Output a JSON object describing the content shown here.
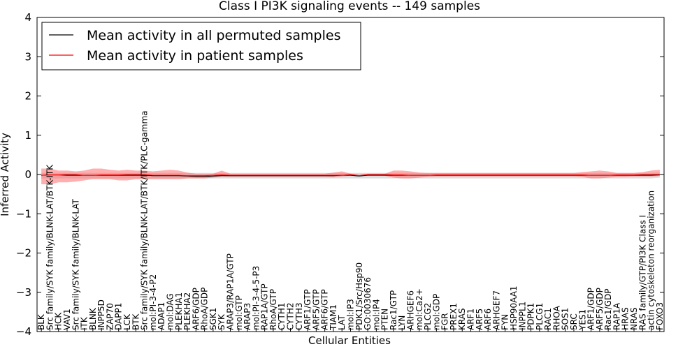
{
  "chart_data": {
    "type": "line",
    "title": "Class I PI3K signaling events -- 149 samples",
    "xlabel": "Cellular Entities",
    "ylabel": "Inferred Activity",
    "ylim": [
      -4,
      4
    ],
    "yticks": [
      -4,
      -3,
      -2,
      -1,
      0,
      1,
      2,
      3,
      4
    ],
    "ytick_labels": [
      "−4",
      "−3",
      "−2",
      "−1",
      "0",
      "1",
      "2",
      "3",
      "4"
    ],
    "grid": false,
    "legend_position": "top-left",
    "categories": [
      "BLK",
      "Src family/SYK family/BLNK-LAT/BTK-ITK",
      "HCK",
      "VAV1",
      "Src family/SYK family/BLNK-LAT",
      "ITK",
      "BLNK",
      "INPP5D",
      "ZAP70",
      "DAPP1",
      "LCK",
      "BTK",
      "Src family/SYK family/BLNK-LAT/BTK/ITK/PLC-gamma",
      "mol:PI-3-4-P2",
      "ADAP1",
      "mol:DAG",
      "PLEKHA1",
      "PLEKHA2",
      "ARF6/GDP",
      "RhoA/GDP",
      "SGK1",
      "SYK",
      "ARAP3/RAP1A/GTP",
      "mol:GTP",
      "ARAP3",
      "mol:PI-3-4-5-P3",
      "RAP1A/GTP",
      "RhoA/GTP",
      "CYTH1",
      "CYTH2",
      "CYTH3",
      "ARF1/GTP",
      "ARF5/GTP",
      "ARF6/GTP",
      "TIAM1",
      "LAT",
      "mol:IP3",
      "PDK1/Src/Hsp90",
      "GO:0030676",
      "mol:IP4",
      "PTEN",
      "Rac1/GTP",
      "LYN",
      "ARHGEF6",
      "mol:Ca2+",
      "PLCG2",
      "mol:GDP",
      "FGR",
      "PREX1",
      "KRAS",
      "ARF1",
      "ARF5",
      "ARF6",
      "ARHGEF7",
      "FYN",
      "HSP90AA1",
      "INPPL1",
      "PDPK1",
      "PLCG1",
      "RAC1",
      "RHOA",
      "SOS1",
      "SRC",
      "YES1",
      "ARF1/GDP",
      "ARF5/GDP",
      "Rac1/GDP",
      "RAP1A",
      "HRAS",
      "NRAS",
      "RAS family/GTP/PI3K Class I",
      "actin cytoskeleton reorganization",
      "FOXO3"
    ],
    "series": [
      {
        "name": "Mean activity in all permuted samples",
        "color": "#000000",
        "values": [
          -0.02,
          -0.01,
          -0.01,
          -0.02,
          -0.02,
          -0.02,
          -0.02,
          -0.02,
          -0.02,
          -0.02,
          -0.02,
          -0.02,
          -0.02,
          -0.03,
          -0.03,
          -0.03,
          -0.03,
          -0.04,
          -0.05,
          -0.05,
          -0.04,
          -0.03,
          -0.03,
          -0.03,
          -0.03,
          -0.03,
          -0.03,
          -0.03,
          -0.03,
          -0.03,
          -0.03,
          -0.03,
          -0.03,
          -0.03,
          -0.03,
          -0.02,
          -0.02,
          -0.04,
          -0.02,
          -0.02,
          -0.02,
          -0.02,
          -0.02,
          -0.02,
          -0.02,
          -0.02,
          -0.02,
          -0.02,
          -0.02,
          -0.02,
          -0.02,
          -0.02,
          -0.02,
          -0.02,
          -0.02,
          -0.02,
          -0.02,
          -0.02,
          -0.02,
          -0.02,
          -0.02,
          -0.02,
          -0.02,
          -0.02,
          -0.02,
          -0.02,
          -0.02,
          -0.02,
          -0.02,
          -0.02,
          -0.02,
          -0.02,
          -0.01
        ],
        "band_low": [
          -0.1,
          -0.1,
          -0.1,
          -0.1,
          -0.1,
          -0.1,
          -0.1,
          -0.1,
          -0.1,
          -0.1,
          -0.1,
          -0.1,
          -0.1,
          -0.1,
          -0.1,
          -0.1,
          -0.1,
          -0.1,
          -0.1,
          -0.1,
          -0.1,
          -0.1,
          -0.1,
          -0.1,
          -0.1,
          -0.1,
          -0.1,
          -0.1,
          -0.1,
          -0.1,
          -0.1,
          -0.1,
          -0.1,
          -0.1,
          -0.1,
          -0.1,
          -0.1,
          -0.1,
          -0.1,
          -0.1,
          -0.1,
          -0.1,
          -0.1,
          -0.1,
          -0.1,
          -0.1,
          -0.1,
          -0.1,
          -0.1,
          -0.1,
          -0.1,
          -0.1,
          -0.1,
          -0.1,
          -0.1,
          -0.1,
          -0.1,
          -0.1,
          -0.1,
          -0.1,
          -0.1,
          -0.1,
          -0.1,
          -0.1,
          -0.1,
          -0.1,
          -0.1,
          -0.1,
          -0.1,
          -0.1,
          -0.1,
          -0.1,
          -0.08
        ],
        "band_high": [
          0.04,
          0.04,
          0.04,
          0.04,
          0.04,
          0.04,
          0.04,
          0.04,
          0.04,
          0.04,
          0.04,
          0.04,
          0.04,
          0.04,
          0.04,
          0.04,
          0.04,
          0.04,
          0.04,
          0.04,
          0.04,
          0.04,
          0.04,
          0.04,
          0.04,
          0.04,
          0.04,
          0.04,
          0.04,
          0.04,
          0.04,
          0.04,
          0.04,
          0.04,
          0.04,
          0.04,
          0.04,
          0.04,
          0.04,
          0.04,
          0.04,
          0.04,
          0.04,
          0.04,
          0.04,
          0.04,
          0.04,
          0.04,
          0.04,
          0.04,
          0.04,
          0.04,
          0.04,
          0.04,
          0.04,
          0.04,
          0.04,
          0.04,
          0.04,
          0.04,
          0.04,
          0.04,
          0.04,
          0.04,
          0.04,
          0.04,
          0.04,
          0.04,
          0.04,
          0.04,
          0.04,
          0.04,
          0.05
        ]
      },
      {
        "name": "Mean activity in patient samples",
        "color": "#ff0000",
        "values": [
          -0.02,
          -0.01,
          -0.01,
          0.0,
          0.0,
          -0.02,
          -0.02,
          -0.01,
          -0.01,
          -0.01,
          0.0,
          0.0,
          0.0,
          -0.02,
          -0.02,
          -0.02,
          -0.02,
          -0.03,
          -0.03,
          -0.03,
          -0.02,
          -0.01,
          -0.02,
          -0.02,
          -0.02,
          -0.02,
          -0.02,
          -0.02,
          -0.02,
          -0.02,
          -0.02,
          -0.02,
          -0.02,
          -0.02,
          -0.02,
          -0.02,
          0.0,
          -0.03,
          0.0,
          0.0,
          0.0,
          -0.01,
          -0.01,
          -0.02,
          -0.02,
          -0.02,
          -0.01,
          -0.01,
          -0.01,
          -0.01,
          -0.01,
          -0.01,
          -0.01,
          -0.01,
          -0.01,
          -0.01,
          -0.01,
          -0.01,
          -0.01,
          -0.01,
          -0.01,
          -0.01,
          -0.01,
          -0.01,
          -0.02,
          -0.02,
          -0.02,
          -0.01,
          -0.01,
          -0.01,
          0.0,
          0.0,
          0.0
        ],
        "band_low": [
          -0.25,
          -0.25,
          -0.2,
          -0.2,
          -0.18,
          -0.15,
          -0.12,
          -0.12,
          -0.12,
          -0.15,
          -0.15,
          -0.12,
          -0.12,
          -0.12,
          -0.12,
          -0.12,
          -0.12,
          -0.1,
          -0.1,
          -0.1,
          -0.08,
          -0.05,
          -0.06,
          -0.06,
          -0.06,
          -0.06,
          -0.06,
          -0.06,
          -0.06,
          -0.06,
          -0.06,
          -0.06,
          -0.06,
          -0.06,
          -0.07,
          -0.05,
          -0.03,
          -0.04,
          -0.02,
          -0.02,
          -0.03,
          -0.08,
          -0.1,
          -0.1,
          -0.08,
          -0.06,
          -0.05,
          -0.05,
          -0.05,
          -0.05,
          -0.05,
          -0.05,
          -0.05,
          -0.05,
          -0.05,
          -0.05,
          -0.05,
          -0.05,
          -0.05,
          -0.05,
          -0.05,
          -0.05,
          -0.05,
          -0.06,
          -0.1,
          -0.1,
          -0.08,
          -0.06,
          -0.06,
          -0.05,
          -0.05,
          -0.05,
          -0.04
        ],
        "band_high": [
          0.15,
          0.15,
          0.1,
          0.1,
          0.08,
          0.1,
          0.15,
          0.15,
          0.12,
          0.1,
          0.12,
          0.1,
          0.1,
          0.08,
          0.1,
          0.12,
          0.1,
          0.05,
          0.02,
          0.02,
          0.02,
          0.1,
          0.02,
          0.02,
          0.02,
          0.02,
          0.02,
          0.02,
          0.02,
          0.02,
          0.02,
          0.02,
          0.02,
          0.02,
          0.05,
          0.08,
          0.02,
          0.0,
          0.02,
          0.02,
          0.02,
          0.1,
          0.1,
          0.08,
          0.05,
          0.04,
          0.04,
          0.04,
          0.04,
          0.04,
          0.04,
          0.04,
          0.04,
          0.04,
          0.04,
          0.04,
          0.04,
          0.04,
          0.04,
          0.04,
          0.04,
          0.04,
          0.04,
          0.06,
          0.08,
          0.1,
          0.08,
          0.04,
          0.04,
          0.04,
          0.06,
          0.1,
          0.12
        ]
      }
    ]
  }
}
